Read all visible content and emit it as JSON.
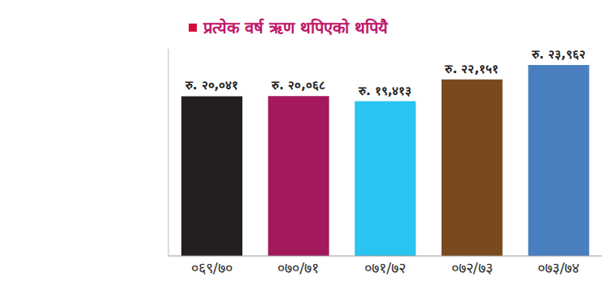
{
  "chart_data": {
    "type": "bar",
    "title": "प्रत्येक वर्ष ऋण थपिएको थपियै",
    "categories": [
      "०६९/७०",
      "०७०/७१",
      "०७१/७२",
      "०७२/७३",
      "०७३/७४"
    ],
    "values": [
      20041,
      20068,
      19413,
      22151,
      23962
    ],
    "value_labels": [
      "रु. २०,०४१",
      "रु. २०,०६८",
      "रु. १९,४१३",
      "रु. २२,१५१",
      "रु. २३,९६२"
    ],
    "colors": [
      "#231f20",
      "#a3195b",
      "#29c4f0",
      "#7a4a1e",
      "#4a7fbf"
    ],
    "ylim": [
      0,
      26000
    ],
    "tick_labels": "x",
    "data_labels": true,
    "grid": false
  }
}
